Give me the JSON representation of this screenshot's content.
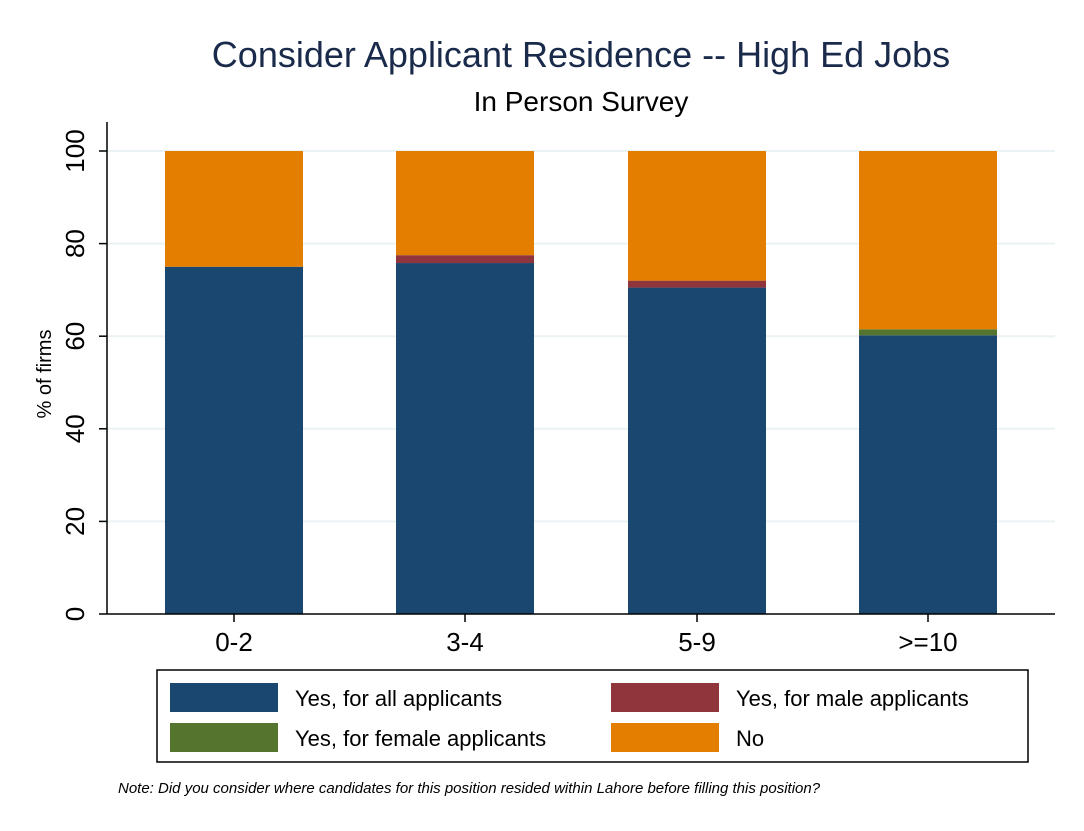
{
  "chart_data": {
    "type": "bar",
    "stacked": true,
    "title": "Consider Applicant Residence -- High Ed Jobs",
    "subtitle": "In Person Survey",
    "xlabel": "",
    "ylabel": "% of firms",
    "ylim": [
      0,
      100
    ],
    "yticks": [
      "0",
      "20",
      "40",
      "60",
      "80",
      "100"
    ],
    "categories": [
      "0-2",
      "3-4",
      "5-9",
      ">=10"
    ],
    "series": [
      {
        "name": "Yes, for all applicants",
        "color": "#1a476f",
        "values": [
          75,
          75.8,
          70.5,
          60.2
        ]
      },
      {
        "name": "Yes, for male applicants",
        "color": "#90353b",
        "values": [
          0,
          1.7,
          1.5,
          0
        ]
      },
      {
        "name": "Yes, for female applicants",
        "color": "#55752f",
        "values": [
          0,
          0,
          0,
          1.3
        ]
      },
      {
        "name": "No",
        "color": "#e37e00",
        "values": [
          25,
          22.5,
          28,
          38.5
        ]
      }
    ],
    "grid": true,
    "legend_position": "bottom",
    "note": "Note: Did you consider where candidates for this position resided within Lahore before filling this position?"
  }
}
